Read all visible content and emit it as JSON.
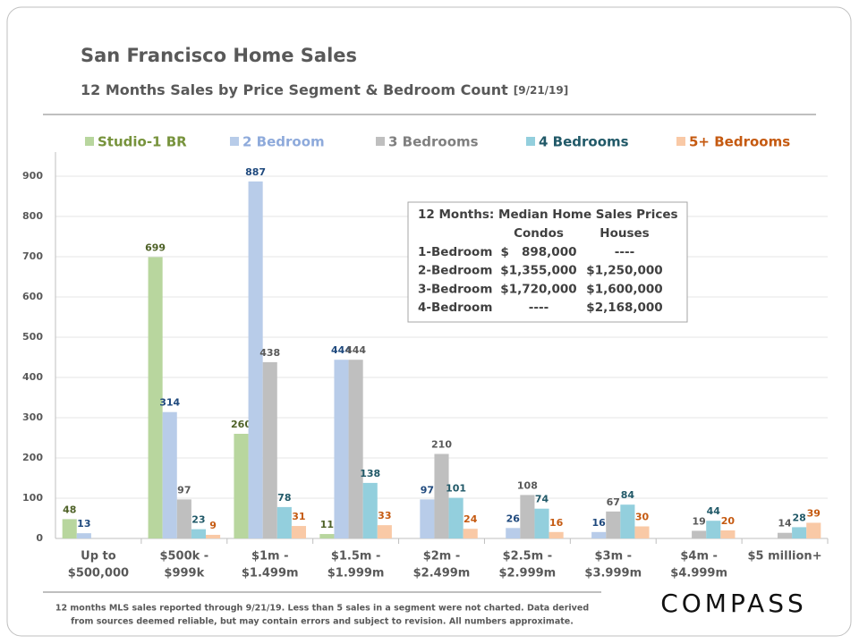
{
  "header": {
    "title": "San Francisco Home Sales",
    "subtitle": "12 Months Sales by Price Segment & Bedroom Count",
    "date": "[9/21/19]"
  },
  "chart_data": {
    "type": "bar",
    "categories": [
      [
        "Up to",
        "$500,000"
      ],
      [
        "$500k -",
        "$999k"
      ],
      [
        "$1m -",
        "$1.499m"
      ],
      [
        "$1.5m -",
        "$1.999m"
      ],
      [
        "$2m -",
        "$2.499m"
      ],
      [
        "$2.5m -",
        "$2.999m"
      ],
      [
        "$3m -",
        "$3.999m"
      ],
      [
        "$4m -",
        "$4.999m"
      ],
      [
        "$5 million+"
      ]
    ],
    "series": [
      {
        "name": "Studio-1 BR",
        "color": "#b8d69e",
        "label_color": "#4f6228",
        "legend_color": "#77933c",
        "values": [
          48,
          699,
          260,
          11,
          null,
          null,
          null,
          null,
          null
        ]
      },
      {
        "name": "2 Bedroom",
        "color": "#b8cce9",
        "label_color": "#1f497d",
        "legend_color": "#8eaadb",
        "values": [
          13,
          314,
          887,
          444,
          97,
          26,
          16,
          null,
          null
        ]
      },
      {
        "name": "3 Bedrooms",
        "color": "#bfbfbf",
        "label_color": "#595959",
        "legend_color": "#7f7f7f",
        "values": [
          null,
          97,
          438,
          444,
          210,
          108,
          67,
          19,
          14
        ]
      },
      {
        "name": "4 Bedrooms",
        "color": "#93cfdd",
        "label_color": "#215968",
        "legend_color": "#215968",
        "values": [
          null,
          23,
          78,
          138,
          101,
          74,
          84,
          44,
          28
        ]
      },
      {
        "name": "5+ Bedrooms",
        "color": "#f9c9a6",
        "label_color": "#c55a11",
        "legend_color": "#c55a11",
        "values": [
          null,
          9,
          31,
          33,
          24,
          16,
          30,
          20,
          39
        ]
      }
    ],
    "ylim": [
      0,
      950
    ],
    "yticks": [
      0,
      100,
      200,
      300,
      400,
      500,
      600,
      700,
      800,
      900
    ],
    "grid": true
  },
  "median_table": {
    "title": "12 Months: Median Home Sales Prices",
    "columns": [
      "Condos",
      "Houses"
    ],
    "rows": [
      [
        "1-Bedroom",
        "$   898,000",
        "----"
      ],
      [
        "2-Bedroom",
        "$1,355,000",
        "$1,250,000"
      ],
      [
        "3-Bedroom",
        "$1,720,000",
        "$1,600,000"
      ],
      [
        "4-Bedroom",
        "----",
        "$2,168,000"
      ]
    ]
  },
  "footnote": [
    "12 months MLS sales reported through 9/21/19. Less than 5 sales in a segment were not charted. Data derived",
    "from sources deemed reliable, but may contain errors and subject to revision. All numbers approximate."
  ],
  "logo": "COMPASS"
}
